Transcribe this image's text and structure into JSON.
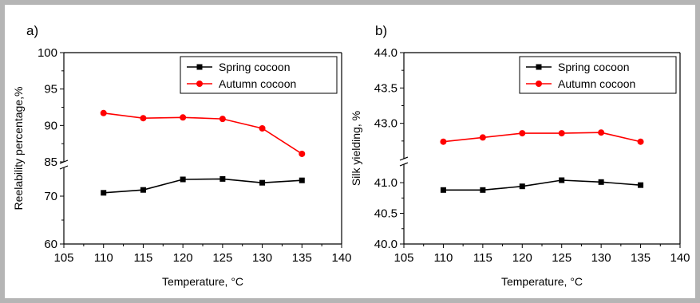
{
  "chart_data": [
    {
      "type": "line",
      "panel_label": "a)",
      "xlabel": "Temperature, °C",
      "ylabel": "Reelability percentage,%",
      "xlim": [
        105,
        140
      ],
      "x_ticks": [
        "105",
        "110",
        "115",
        "120",
        "125",
        "130",
        "135",
        "140"
      ],
      "y_axis_broken": true,
      "y_upper_range": [
        85,
        100
      ],
      "y_upper_ticks": [
        "85",
        "90",
        "95",
        "100"
      ],
      "y_lower_range": [
        60,
        76
      ],
      "y_lower_ticks": [
        "60",
        "70"
      ],
      "x": [
        110,
        115,
        120,
        125,
        130,
        135
      ],
      "series": [
        {
          "name": "Spring cocoon",
          "color": "#000000",
          "marker": "square",
          "values": [
            70.7,
            71.3,
            73.5,
            73.6,
            72.8,
            73.3
          ]
        },
        {
          "name": "Autumn cocoon",
          "color": "#ff0000",
          "marker": "circle",
          "values": [
            91.7,
            91.0,
            91.1,
            90.9,
            89.6,
            86.1
          ]
        }
      ],
      "legend": "top-right",
      "grid": false
    },
    {
      "type": "line",
      "panel_label": "b)",
      "xlabel": "Temperature, °C",
      "ylabel": "Silk yielding, %",
      "xlim": [
        105,
        140
      ],
      "x_ticks": [
        "105",
        "110",
        "115",
        "120",
        "125",
        "130",
        "135",
        "140"
      ],
      "y_axis_broken": true,
      "y_upper_range": [
        42.5,
        44.0
      ],
      "y_upper_ticks": [
        "43.0",
        "43.5",
        "44.0"
      ],
      "y_lower_range": [
        40.0,
        41.3
      ],
      "y_lower_ticks": [
        "40.0",
        "40.5",
        "41.0"
      ],
      "x": [
        110,
        115,
        120,
        125,
        130,
        135
      ],
      "series": [
        {
          "name": "Spring cocoon",
          "color": "#000000",
          "marker": "square",
          "values": [
            40.88,
            40.88,
            40.94,
            41.04,
            41.01,
            40.96
          ]
        },
        {
          "name": "Autumn cocoon",
          "color": "#ff0000",
          "marker": "circle",
          "values": [
            42.74,
            42.8,
            42.86,
            42.86,
            42.87,
            42.74
          ]
        }
      ],
      "legend": "top-right",
      "grid": false
    }
  ]
}
